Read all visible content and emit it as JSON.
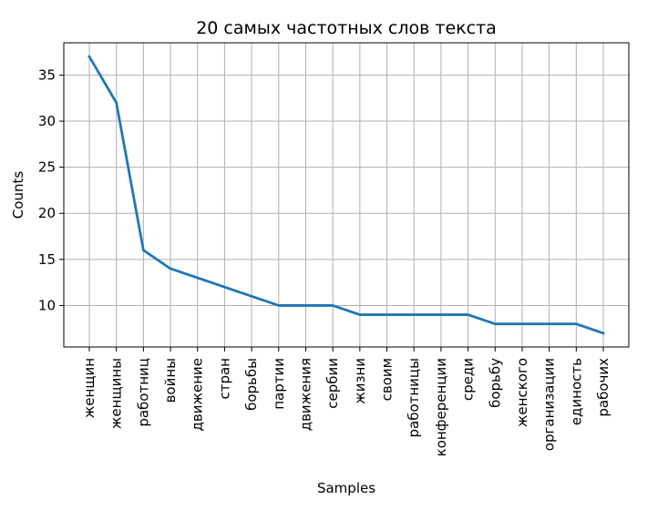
{
  "chart_data": {
    "type": "line",
    "title": "20 самых частотных слов текста",
    "xlabel": "Samples",
    "ylabel": "Counts",
    "categories": [
      "женщин",
      "женщины",
      "работниц",
      "войны",
      "движение",
      "стран",
      "борьбы",
      "партии",
      "движения",
      "сербии",
      "жизни",
      "своим",
      "работницы",
      "конференции",
      "среди",
      "борьбу",
      "женского",
      "организации",
      "единость",
      "рабочих"
    ],
    "values": [
      37,
      32,
      16,
      14,
      13,
      12,
      11,
      10,
      10,
      10,
      9,
      9,
      9,
      9,
      9,
      8,
      8,
      8,
      8,
      7
    ],
    "ylim": [
      5.5,
      38.5
    ],
    "yticks": [
      10,
      15,
      20,
      25,
      30,
      35
    ],
    "grid": true,
    "line_color": "#1f77b4"
  }
}
